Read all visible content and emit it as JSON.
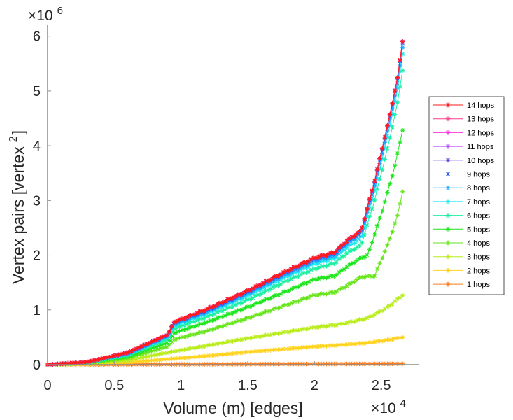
{
  "chart_data": {
    "type": "line",
    "title": "",
    "xlabel": "Volume (m) [edges]",
    "ylabel": "Vertex pairs [vertex",
    "ylabel_sup": "2",
    "ylabel_close": "]",
    "x_multiplier": "×10",
    "x_multiplier_exp": "4",
    "y_multiplier": "×10",
    "y_multiplier_exp": "6",
    "xlim": [
      0,
      2.78
    ],
    "ylim": [
      0,
      6.2
    ],
    "xticks": [
      0,
      0.5,
      1,
      1.5,
      2,
      2.5
    ],
    "xtick_labels": [
      "0",
      "0.5",
      "1",
      "1.5",
      "2",
      "2.5"
    ],
    "yticks": [
      0,
      1,
      2,
      3,
      4,
      5,
      6
    ],
    "ytick_labels": [
      "0",
      "1",
      "2",
      "3",
      "4",
      "5",
      "6"
    ],
    "grid": false,
    "legend_position": "right",
    "marker": "asterisk",
    "series": [
      {
        "name": "14 hops",
        "color": "#ff1a1a",
        "points": [
          [
            0,
            0
          ],
          [
            0.3,
            0.05
          ],
          [
            0.6,
            0.22
          ],
          [
            0.9,
            0.55
          ],
          [
            0.95,
            0.78
          ],
          [
            1.2,
            1.02
          ],
          [
            1.5,
            1.35
          ],
          [
            1.8,
            1.72
          ],
          [
            2.0,
            1.95
          ],
          [
            2.15,
            2.05
          ],
          [
            2.25,
            2.28
          ],
          [
            2.35,
            2.45
          ],
          [
            2.45,
            3.35
          ],
          [
            2.55,
            4.4
          ],
          [
            2.62,
            5.2
          ],
          [
            2.66,
            5.91
          ]
        ]
      },
      {
        "name": "13 hops",
        "color": "#ff3d8a",
        "points": [
          [
            0,
            0
          ],
          [
            0.3,
            0.05
          ],
          [
            0.6,
            0.22
          ],
          [
            0.9,
            0.55
          ],
          [
            0.95,
            0.78
          ],
          [
            1.2,
            1.02
          ],
          [
            1.5,
            1.35
          ],
          [
            1.8,
            1.72
          ],
          [
            2.0,
            1.95
          ],
          [
            2.15,
            2.05
          ],
          [
            2.25,
            2.28
          ],
          [
            2.35,
            2.45
          ],
          [
            2.45,
            3.35
          ],
          [
            2.55,
            4.4
          ],
          [
            2.62,
            5.2
          ],
          [
            2.66,
            5.91
          ]
        ]
      },
      {
        "name": "12 hops",
        "color": "#ff33e0",
        "points": [
          [
            0,
            0
          ],
          [
            0.3,
            0.05
          ],
          [
            0.6,
            0.22
          ],
          [
            0.9,
            0.55
          ],
          [
            0.95,
            0.78
          ],
          [
            1.2,
            1.02
          ],
          [
            1.5,
            1.35
          ],
          [
            1.8,
            1.72
          ],
          [
            2.0,
            1.95
          ],
          [
            2.15,
            2.05
          ],
          [
            2.25,
            2.28
          ],
          [
            2.35,
            2.45
          ],
          [
            2.45,
            3.35
          ],
          [
            2.55,
            4.4
          ],
          [
            2.62,
            5.2
          ],
          [
            2.66,
            5.91
          ]
        ]
      },
      {
        "name": "11 hops",
        "color": "#b64dff",
        "points": [
          [
            0,
            0
          ],
          [
            0.3,
            0.05
          ],
          [
            0.6,
            0.22
          ],
          [
            0.9,
            0.55
          ],
          [
            0.95,
            0.78
          ],
          [
            1.2,
            1.02
          ],
          [
            1.5,
            1.35
          ],
          [
            1.8,
            1.72
          ],
          [
            2.0,
            1.95
          ],
          [
            2.15,
            2.05
          ],
          [
            2.25,
            2.28
          ],
          [
            2.35,
            2.45
          ],
          [
            2.45,
            3.35
          ],
          [
            2.55,
            4.4
          ],
          [
            2.62,
            5.2
          ],
          [
            2.66,
            5.91
          ]
        ]
      },
      {
        "name": "10 hops",
        "color": "#5a2de8",
        "points": [
          [
            0,
            0
          ],
          [
            0.3,
            0.05
          ],
          [
            0.6,
            0.22
          ],
          [
            0.9,
            0.55
          ],
          [
            0.95,
            0.78
          ],
          [
            1.2,
            1.02
          ],
          [
            1.5,
            1.35
          ],
          [
            1.8,
            1.72
          ],
          [
            2.0,
            1.95
          ],
          [
            2.15,
            2.05
          ],
          [
            2.25,
            2.28
          ],
          [
            2.35,
            2.45
          ],
          [
            2.45,
            3.35
          ],
          [
            2.55,
            4.4
          ],
          [
            2.62,
            5.2
          ],
          [
            2.66,
            5.91
          ]
        ]
      },
      {
        "name": "9 hops",
        "color": "#2b55f0",
        "points": [
          [
            0,
            0
          ],
          [
            0.3,
            0.05
          ],
          [
            0.6,
            0.21
          ],
          [
            0.9,
            0.54
          ],
          [
            0.95,
            0.77
          ],
          [
            1.2,
            1.0
          ],
          [
            1.5,
            1.33
          ],
          [
            1.8,
            1.7
          ],
          [
            2.0,
            1.93
          ],
          [
            2.15,
            2.03
          ],
          [
            2.25,
            2.26
          ],
          [
            2.35,
            2.43
          ],
          [
            2.45,
            3.33
          ],
          [
            2.55,
            4.38
          ],
          [
            2.62,
            5.18
          ],
          [
            2.66,
            5.88
          ]
        ]
      },
      {
        "name": "8 hops",
        "color": "#1aa3ff",
        "points": [
          [
            0,
            0
          ],
          [
            0.3,
            0.05
          ],
          [
            0.6,
            0.2
          ],
          [
            0.9,
            0.52
          ],
          [
            0.95,
            0.74
          ],
          [
            1.2,
            0.97
          ],
          [
            1.5,
            1.3
          ],
          [
            1.8,
            1.66
          ],
          [
            2.0,
            1.89
          ],
          [
            2.15,
            1.99
          ],
          [
            2.25,
            2.22
          ],
          [
            2.35,
            2.38
          ],
          [
            2.45,
            3.27
          ],
          [
            2.55,
            4.3
          ],
          [
            2.62,
            5.1
          ],
          [
            2.66,
            5.8
          ]
        ]
      },
      {
        "name": "7 hops",
        "color": "#1ae8f0",
        "points": [
          [
            0,
            0
          ],
          [
            0.3,
            0.04
          ],
          [
            0.6,
            0.19
          ],
          [
            0.9,
            0.5
          ],
          [
            0.95,
            0.71
          ],
          [
            1.2,
            0.94
          ],
          [
            1.5,
            1.26
          ],
          [
            1.8,
            1.62
          ],
          [
            2.0,
            1.84
          ],
          [
            2.15,
            1.94
          ],
          [
            2.25,
            2.16
          ],
          [
            2.35,
            2.3
          ],
          [
            2.45,
            3.18
          ],
          [
            2.55,
            4.2
          ],
          [
            2.62,
            5.0
          ],
          [
            2.66,
            5.68
          ]
        ]
      },
      {
        "name": "6 hops",
        "color": "#1af0a0",
        "points": [
          [
            0,
            0
          ],
          [
            0.3,
            0.04
          ],
          [
            0.6,
            0.17
          ],
          [
            0.9,
            0.46
          ],
          [
            0.95,
            0.66
          ],
          [
            1.2,
            0.88
          ],
          [
            1.5,
            1.18
          ],
          [
            1.8,
            1.54
          ],
          [
            2.0,
            1.75
          ],
          [
            2.15,
            1.85
          ],
          [
            2.25,
            2.05
          ],
          [
            2.35,
            2.18
          ],
          [
            2.45,
            3.0
          ],
          [
            2.55,
            3.98
          ],
          [
            2.62,
            4.75
          ],
          [
            2.66,
            5.38
          ]
        ]
      },
      {
        "name": "5 hops",
        "color": "#1ae61a",
        "points": [
          [
            0,
            0
          ],
          [
            0.3,
            0.04
          ],
          [
            0.6,
            0.15
          ],
          [
            0.9,
            0.4
          ],
          [
            0.95,
            0.58
          ],
          [
            1.2,
            0.78
          ],
          [
            1.5,
            1.05
          ],
          [
            1.8,
            1.35
          ],
          [
            2.0,
            1.56
          ],
          [
            2.15,
            1.62
          ],
          [
            2.25,
            1.8
          ],
          [
            2.35,
            1.95
          ],
          [
            2.4,
            2.0
          ],
          [
            2.5,
            2.75
          ],
          [
            2.6,
            3.6
          ],
          [
            2.66,
            4.29
          ]
        ]
      },
      {
        "name": "4 hops",
        "color": "#66e61a",
        "points": [
          [
            0,
            0
          ],
          [
            0.3,
            0.03
          ],
          [
            0.6,
            0.12
          ],
          [
            0.9,
            0.33
          ],
          [
            0.95,
            0.46
          ],
          [
            1.2,
            0.62
          ],
          [
            1.5,
            0.85
          ],
          [
            1.8,
            1.1
          ],
          [
            2.0,
            1.27
          ],
          [
            2.15,
            1.32
          ],
          [
            2.25,
            1.45
          ],
          [
            2.35,
            1.6
          ],
          [
            2.45,
            1.62
          ],
          [
            2.55,
            2.2
          ],
          [
            2.62,
            2.7
          ],
          [
            2.66,
            3.17
          ]
        ]
      },
      {
        "name": "3 hops",
        "color": "#b8ed1a",
        "points": [
          [
            0,
            0
          ],
          [
            0.3,
            0.02
          ],
          [
            0.6,
            0.08
          ],
          [
            0.9,
            0.22
          ],
          [
            1.2,
            0.35
          ],
          [
            1.5,
            0.48
          ],
          [
            1.8,
            0.6
          ],
          [
            2.0,
            0.68
          ],
          [
            2.2,
            0.74
          ],
          [
            2.4,
            0.85
          ],
          [
            2.55,
            1.05
          ],
          [
            2.66,
            1.27
          ]
        ]
      },
      {
        "name": "2 hops",
        "color": "#ffd21a",
        "points": [
          [
            0,
            0
          ],
          [
            0.3,
            0.01
          ],
          [
            0.6,
            0.04
          ],
          [
            0.9,
            0.1
          ],
          [
            1.2,
            0.16
          ],
          [
            1.5,
            0.23
          ],
          [
            1.8,
            0.29
          ],
          [
            2.0,
            0.33
          ],
          [
            2.2,
            0.36
          ],
          [
            2.4,
            0.4
          ],
          [
            2.55,
            0.45
          ],
          [
            2.66,
            0.5
          ]
        ]
      },
      {
        "name": "1 hops",
        "color": "#ff7a1a",
        "points": [
          [
            0,
            0
          ],
          [
            0.5,
            0.003
          ],
          [
            1.0,
            0.006
          ],
          [
            1.5,
            0.009
          ],
          [
            2.0,
            0.012
          ],
          [
            2.5,
            0.015
          ],
          [
            2.66,
            0.016
          ]
        ]
      }
    ]
  }
}
